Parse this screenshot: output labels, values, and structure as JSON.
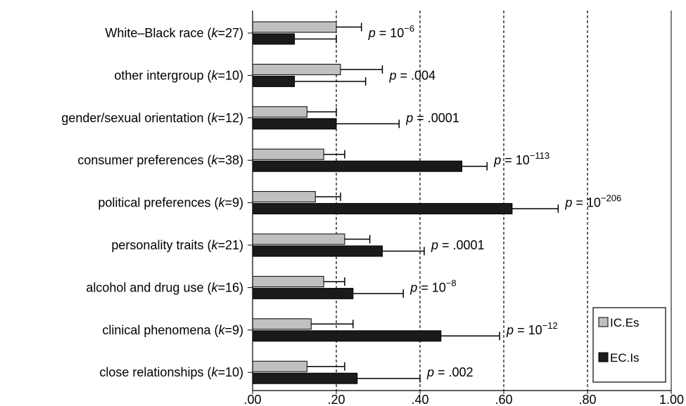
{
  "chart_data": {
    "type": "bar",
    "orientation": "horizontal",
    "categories": [
      "White–Black race",
      "other intergroup",
      "gender/sexual orientation",
      "consumer preferences",
      "political preferences",
      "personality traits",
      "alcohol and drug use",
      "clinical phenomena",
      "close relationships"
    ],
    "k_values": [
      "27",
      "10",
      "12",
      "38",
      "9",
      "21",
      "16",
      "9",
      "10"
    ],
    "series": [
      {
        "name": "IC.Es",
        "color": "#c0c0c0",
        "values": [
          0.2,
          0.21,
          0.13,
          0.17,
          0.15,
          0.22,
          0.17,
          0.14,
          0.13
        ],
        "error_upper": [
          0.26,
          0.31,
          0.2,
          0.22,
          0.21,
          0.28,
          0.22,
          0.24,
          0.22
        ]
      },
      {
        "name": "EC.Is",
        "color": "#1a1a1a",
        "values": [
          0.1,
          0.1,
          0.2,
          0.5,
          0.62,
          0.31,
          0.24,
          0.45,
          0.25
        ],
        "error_upper": [
          0.2,
          0.27,
          0.35,
          0.56,
          0.73,
          0.41,
          0.36,
          0.59,
          0.4
        ]
      }
    ],
    "p_values": [
      {
        "base": "10",
        "exp": "−6"
      },
      {
        "base": ".004",
        "exp": ""
      },
      {
        "base": ".0001",
        "exp": ""
      },
      {
        "base": "10",
        "exp": "−113"
      },
      {
        "base": "10",
        "exp": "−206"
      },
      {
        "base": ".0001",
        "exp": ""
      },
      {
        "base": "10",
        "exp": "−8"
      },
      {
        "base": "10",
        "exp": "−12"
      },
      {
        "base": ".002",
        "exp": ""
      }
    ],
    "xlim": [
      0,
      1.0
    ],
    "xticks": [
      0,
      0.2,
      0.4,
      0.6,
      0.8,
      1.0
    ],
    "xtick_labels": [
      ".00",
      ".20",
      ".40",
      ".60",
      ".80",
      "1.00"
    ],
    "gridlines": [
      0.2,
      0.4,
      0.6,
      0.8
    ],
    "grid": "vertical-dashed",
    "legend_position": "bottom-right",
    "title": "",
    "xlabel": "",
    "ylabel": ""
  }
}
